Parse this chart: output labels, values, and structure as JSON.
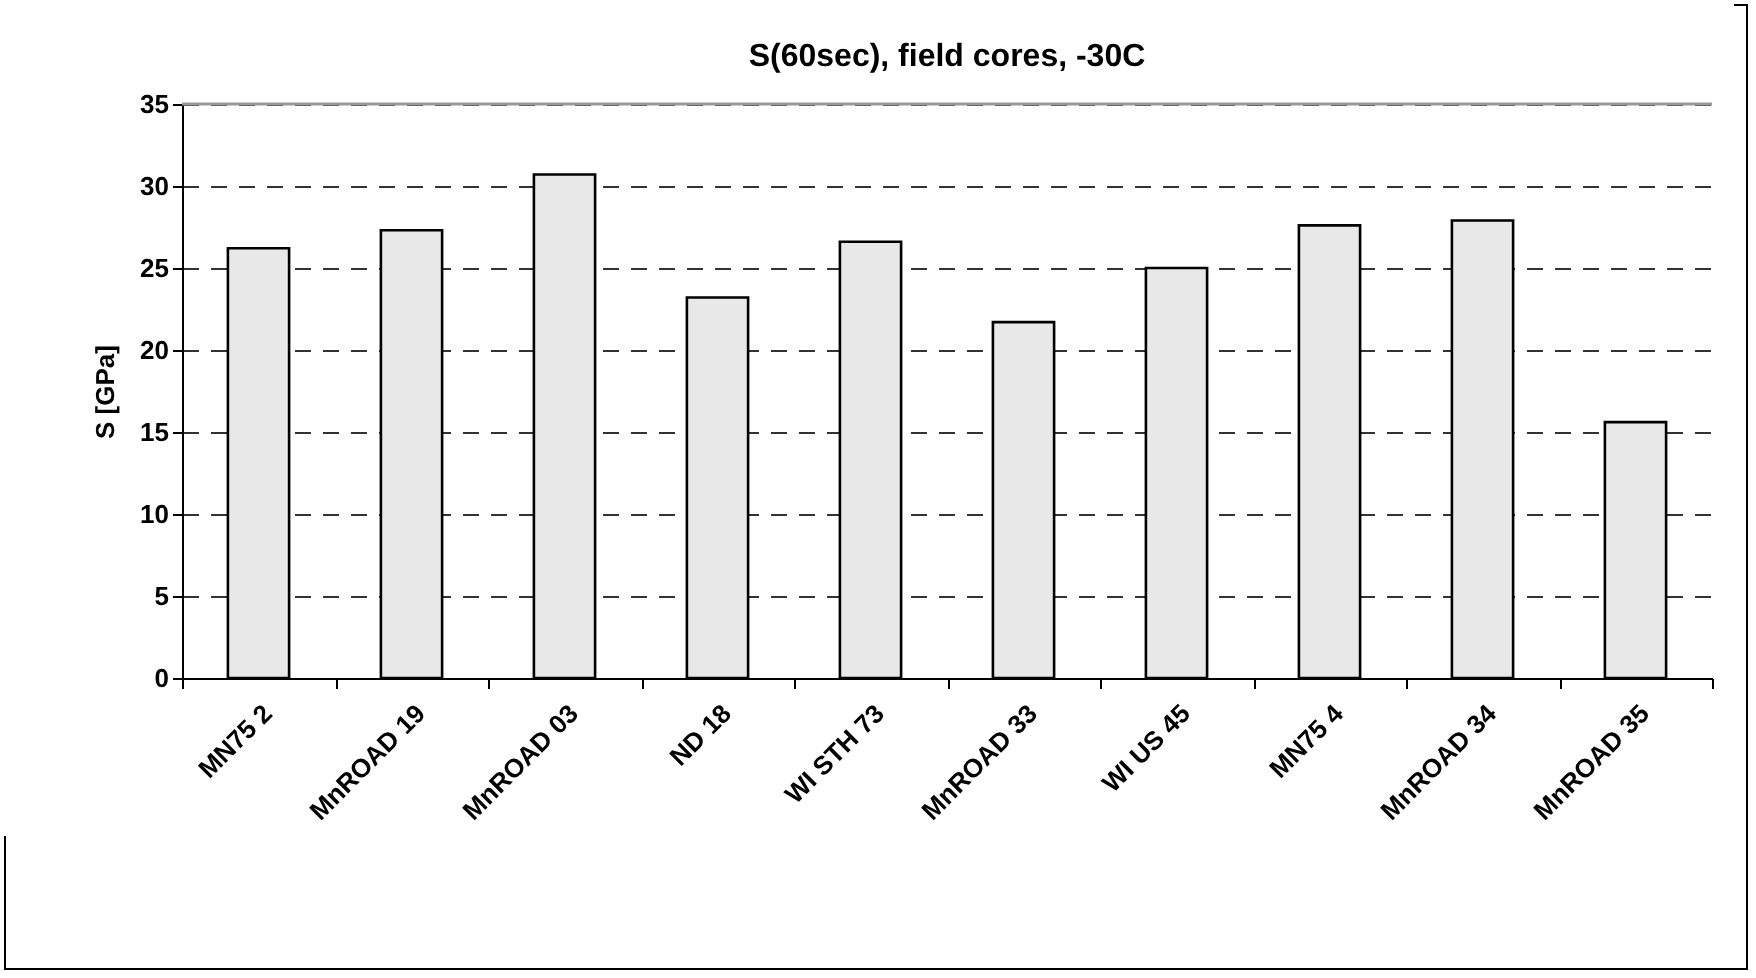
{
  "chart_data": {
    "type": "bar",
    "title": "S(60sec), field cores, -30C",
    "ylabel": "S [GPa]",
    "categories": [
      "MN75 2",
      "MnROAD 19",
      "MnROAD 03",
      "ND 18",
      "WI STH 73",
      "MnROAD 33",
      "WI US 45",
      "MN75 4",
      "MnROAD 34",
      "MnROAD 35"
    ],
    "values": [
      26.2,
      27.3,
      30.7,
      23.2,
      26.6,
      21.7,
      25.0,
      27.6,
      27.9,
      15.6
    ],
    "color": "#e8e8e8",
    "ylim": [
      0,
      35
    ],
    "yticks": [
      0,
      5,
      10,
      15,
      20,
      25,
      30,
      35
    ],
    "grid": "y"
  }
}
